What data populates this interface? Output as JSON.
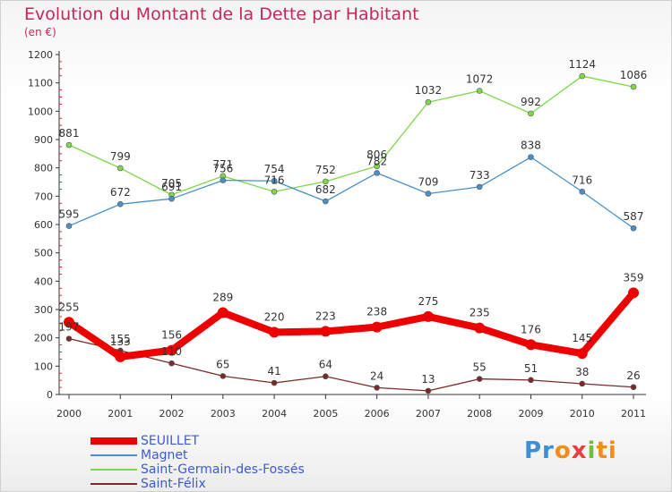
{
  "title": "Evolution du Montant de la Dette par Habitant",
  "subtitle": "(en €)",
  "logo_text": "Proxiti",
  "chart_data": {
    "type": "line",
    "x": [
      "2000",
      "2001",
      "2002",
      "2003",
      "2004",
      "2005",
      "2006",
      "2007",
      "2008",
      "2009",
      "2010",
      "2011"
    ],
    "ylim": [
      0,
      1200
    ],
    "yticks": [
      0,
      100,
      200,
      300,
      400,
      500,
      600,
      700,
      800,
      900,
      1000,
      1100,
      1200
    ],
    "grid": false,
    "legend": "bottom-left",
    "series": [
      {
        "name": "SEUILLET",
        "color": "#ee0000",
        "values": [
          255,
          133,
          156,
          289,
          220,
          223,
          238,
          275,
          235,
          176,
          145,
          359
        ],
        "labels": [
          "255",
          "133",
          "156",
          "289",
          "220",
          "223",
          "238",
          "275",
          "235",
          "176",
          "145",
          "359"
        ]
      },
      {
        "name": "Magnet",
        "color": "#4a90c8",
        "values": [
          595,
          672,
          691,
          756,
          754,
          682,
          782,
          709,
          733,
          838,
          716,
          587
        ],
        "labels": [
          "595",
          "672",
          "691",
          "756",
          "754",
          "682",
          "782",
          "709",
          "733",
          "838",
          "716",
          "587"
        ]
      },
      {
        "name": "Saint-Germain-des-Fossés",
        "color": "#7ed84a",
        "values": [
          881,
          799,
          705,
          771,
          716,
          752,
          806,
          1032,
          1072,
          992,
          1124,
          1086
        ],
        "labels": [
          "881",
          "799",
          "705",
          "771",
          "716",
          "752",
          "806",
          "1032",
          "1072",
          "992",
          "1124",
          "1086"
        ]
      },
      {
        "name": "Saint-Félix",
        "color": "#7a2a2a",
        "values": [
          197,
          155,
          110,
          65,
          41,
          64,
          24,
          13,
          55,
          51,
          38,
          26
        ],
        "labels": [
          "197",
          "155",
          "110",
          "65",
          "41",
          "64",
          "24",
          "13",
          "55",
          "51",
          "38",
          "26"
        ]
      }
    ]
  }
}
